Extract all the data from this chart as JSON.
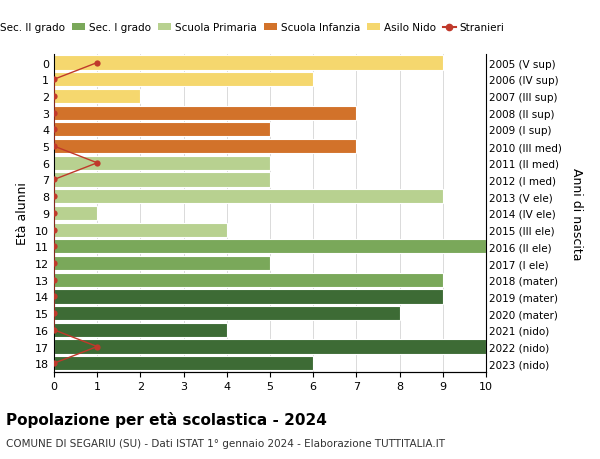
{
  "ages": [
    18,
    17,
    16,
    15,
    14,
    13,
    12,
    11,
    10,
    9,
    8,
    7,
    6,
    5,
    4,
    3,
    2,
    1,
    0
  ],
  "years": [
    "2005 (V sup)",
    "2006 (IV sup)",
    "2007 (III sup)",
    "2008 (II sup)",
    "2009 (I sup)",
    "2010 (III med)",
    "2011 (II med)",
    "2012 (I med)",
    "2013 (V ele)",
    "2014 (IV ele)",
    "2015 (III ele)",
    "2016 (II ele)",
    "2017 (I ele)",
    "2018 (mater)",
    "2019 (mater)",
    "2020 (mater)",
    "2021 (nido)",
    "2022 (nido)",
    "2023 (nido)"
  ],
  "bar_values": [
    6,
    10,
    4,
    8,
    9,
    9,
    5,
    10,
    4,
    1,
    9,
    5,
    5,
    7,
    5,
    7,
    2,
    6,
    9
  ],
  "bar_colors": [
    "#3d6b35",
    "#3d6b35",
    "#3d6b35",
    "#3d6b35",
    "#3d6b35",
    "#7aa85a",
    "#7aa85a",
    "#7aa85a",
    "#b8d190",
    "#b8d190",
    "#b8d190",
    "#b8d190",
    "#b8d190",
    "#d2722a",
    "#d2722a",
    "#d2722a",
    "#f5d76e",
    "#f5d76e",
    "#f5d76e"
  ],
  "stranieri_x": [
    0,
    1,
    0,
    0,
    0,
    0,
    0,
    0,
    0,
    0,
    0,
    0,
    1,
    0,
    0,
    0,
    0,
    0,
    1
  ],
  "legend_labels": [
    "Sec. II grado",
    "Sec. I grado",
    "Scuola Primaria",
    "Scuola Infanzia",
    "Asilo Nido",
    "Stranieri"
  ],
  "legend_colors": [
    "#3d6b35",
    "#7aa85a",
    "#b8d190",
    "#d2722a",
    "#f5d76e",
    "#c0392b"
  ],
  "title": "Popolazione per età scolastica - 2024",
  "subtitle": "COMUNE DI SEGARIU (SU) - Dati ISTAT 1° gennaio 2024 - Elaborazione TUTTITALIA.IT",
  "ylabel_left": "Età alunni",
  "ylabel_right": "Anni di nascita",
  "xlim": [
    0,
    10
  ],
  "xticks": [
    0,
    1,
    2,
    3,
    4,
    5,
    6,
    7,
    8,
    9,
    10
  ],
  "background_color": "#ffffff",
  "bar_edge_color": "#ffffff",
  "grid_color": "#cccccc",
  "stranieri_color": "#c0392b"
}
